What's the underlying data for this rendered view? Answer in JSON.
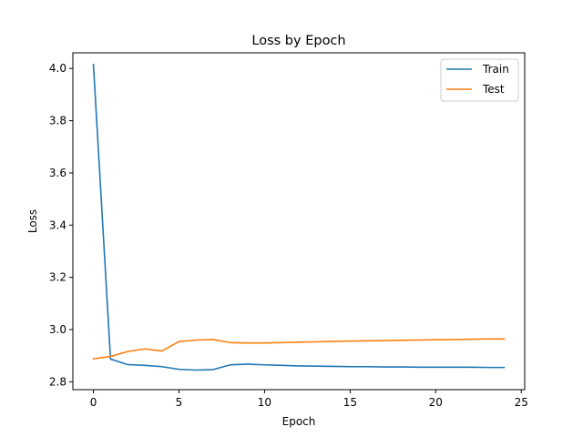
{
  "chart_data": {
    "type": "line",
    "title": "Loss by Epoch",
    "xlabel": "Epoch",
    "ylabel": "Loss",
    "xlim": [
      -1.2,
      25.2
    ],
    "ylim": [
      2.77,
      4.06
    ],
    "xticks": [
      0,
      5,
      10,
      15,
      20,
      25
    ],
    "yticks": [
      2.8,
      3.0,
      3.2,
      3.4,
      3.6,
      3.8,
      4.0
    ],
    "grid": false,
    "legend_position": "top-right",
    "series": [
      {
        "name": "Train",
        "color": "#1f77b4",
        "x": [
          0,
          1,
          2,
          3,
          4,
          5,
          6,
          7,
          8,
          9,
          10,
          11,
          12,
          13,
          14,
          15,
          16,
          17,
          18,
          19,
          20,
          21,
          22,
          23,
          24
        ],
        "values": [
          4.015,
          2.887,
          2.866,
          2.863,
          2.858,
          2.848,
          2.845,
          2.847,
          2.865,
          2.868,
          2.865,
          2.863,
          2.861,
          2.86,
          2.859,
          2.858,
          2.858,
          2.857,
          2.857,
          2.856,
          2.856,
          2.856,
          2.856,
          2.855,
          2.855
        ]
      },
      {
        "name": "Test",
        "color": "#ff7f0e",
        "x": [
          0,
          1,
          2,
          3,
          4,
          5,
          6,
          7,
          8,
          9,
          10,
          11,
          12,
          13,
          14,
          15,
          16,
          17,
          18,
          19,
          20,
          21,
          22,
          23,
          24
        ],
        "values": [
          2.888,
          2.897,
          2.916,
          2.926,
          2.918,
          2.954,
          2.96,
          2.962,
          2.95,
          2.949,
          2.949,
          2.95,
          2.952,
          2.953,
          2.955,
          2.956,
          2.957,
          2.958,
          2.959,
          2.96,
          2.961,
          2.962,
          2.963,
          2.964,
          2.964
        ]
      }
    ]
  }
}
